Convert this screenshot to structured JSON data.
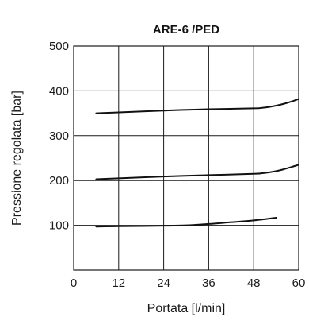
{
  "chart_data": {
    "type": "line",
    "title": "ARE-6 /PED",
    "xlabel": "Portata [l/min]",
    "ylabel": "Pressione regolata [bar]",
    "xlim": [
      0,
      60
    ],
    "ylim": [
      0,
      500
    ],
    "xticks": [
      0,
      12,
      24,
      36,
      48,
      60
    ],
    "yticks": [
      100,
      200,
      300,
      400,
      500
    ],
    "grid": true,
    "series": [
      {
        "x": [
          6,
          12,
          24,
          36,
          48,
          50,
          52,
          54,
          56,
          58,
          60
        ],
        "y": [
          350,
          352,
          356,
          359,
          361,
          362,
          364,
          367,
          371,
          376,
          382
        ]
      },
      {
        "x": [
          6,
          12,
          24,
          36,
          48,
          50,
          52,
          54,
          56,
          58,
          60
        ],
        "y": [
          203,
          205,
          209,
          212,
          215,
          216,
          218,
          221,
          225,
          230,
          235
        ]
      },
      {
        "x": [
          6,
          12,
          24,
          30,
          36,
          42,
          48,
          54
        ],
        "y": [
          97,
          98,
          99,
          100,
          103,
          107,
          111,
          117
        ]
      }
    ]
  }
}
